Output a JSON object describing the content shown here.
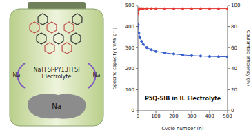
{
  "chart_data": {
    "type": "line",
    "title": "P5Q-SIB in IL Electrolyte",
    "x_label": "Cycle number (n)",
    "y_label": "Specific capacity (mAh g⁻¹)",
    "y2_label": "Coulombic efficiency (%)",
    "x": [
      1,
      5,
      10,
      20,
      30,
      50,
      75,
      100,
      150,
      200,
      250,
      300,
      350,
      400,
      450,
      500
    ],
    "series": [
      {
        "color": "#3a5fcd",
        "marker": "circle",
        "values": [
          410,
          370,
          350,
          330,
          315,
          300,
          290,
          282,
          275,
          270,
          265,
          262,
          260,
          258,
          257,
          256
        ]
      },
      {
        "color": "#e8382f",
        "marker": "circle",
        "axis": "y2",
        "values": [
          92,
          96,
          97,
          97,
          97,
          97,
          97,
          97,
          97,
          97,
          97,
          97,
          97,
          97,
          97,
          97
        ]
      }
    ],
    "xlim": [
      0,
      500
    ],
    "xticks": [
      0,
      100,
      200,
      300,
      400,
      500
    ],
    "ylim": [
      0,
      500
    ],
    "yticks": [
      0,
      100,
      200,
      300,
      400,
      500
    ],
    "y2lim": [
      0,
      100
    ],
    "y2ticks": [
      0,
      20,
      40,
      60,
      80,
      100
    ],
    "grid": false,
    "annotations": [
      "NaTFSI-PY13TFSI",
      "Electrolyte",
      "Na",
      "Na",
      "Na"
    ]
  }
}
